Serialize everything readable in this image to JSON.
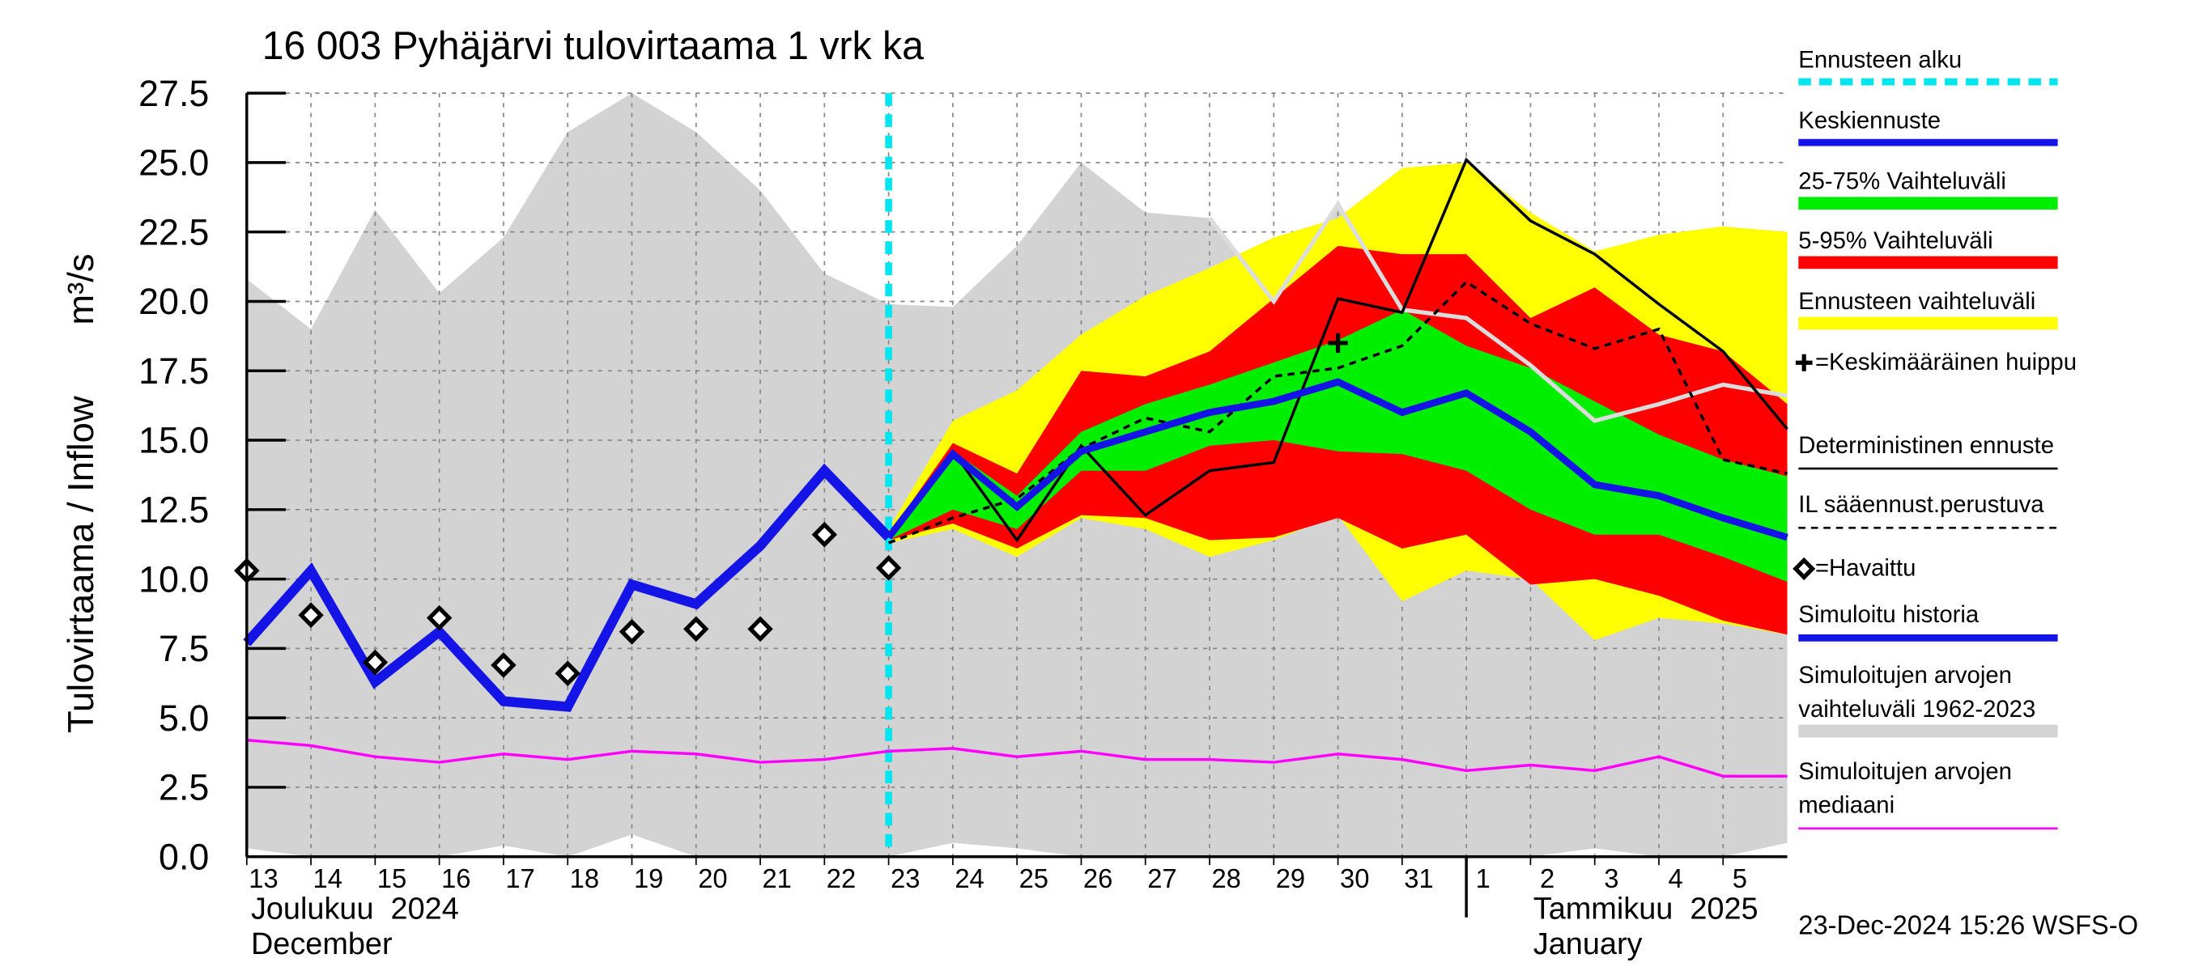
{
  "chart_data": {
    "type": "line",
    "title": "16 003 Pyhäjärvi tulovirtaama 1 vrk ka",
    "y_label": "Tulovirtaama / Inflow",
    "y_unit": "m³/s",
    "xlim": [
      "2024-12-13",
      "2025-01-06"
    ],
    "ylim": [
      0,
      27.5
    ],
    "yticks": [
      {
        "value": 0,
        "label": "0.0"
      },
      2.5,
      {
        "value": 5,
        "label": "5.0"
      },
      7.5,
      {
        "value": 10,
        "label": "10.0"
      },
      12.5,
      {
        "value": 15,
        "label": "15.0"
      },
      17.5,
      {
        "value": 20,
        "label": "20.0"
      },
      22.5,
      {
        "value": 25,
        "label": "25.0"
      },
      27.5
    ],
    "xticks": [
      {
        "value": "2024-12-13",
        "label": "13"
      },
      {
        "value": "2024-12-14",
        "label": "14"
      },
      {
        "value": "2024-12-15",
        "label": "15"
      },
      {
        "value": "2024-12-16",
        "label": "16"
      },
      {
        "value": "2024-12-17",
        "label": "17"
      },
      {
        "value": "2024-12-18",
        "label": "18"
      },
      {
        "value": "2024-12-19",
        "label": "19"
      },
      {
        "value": "2024-12-20",
        "label": "20"
      },
      {
        "value": "2024-12-21",
        "label": "21"
      },
      {
        "value": "2024-12-22",
        "label": "22"
      },
      {
        "value": "2024-12-23",
        "label": "23"
      },
      {
        "value": "2024-12-24",
        "label": "24"
      },
      {
        "value": "2024-12-25",
        "label": "25"
      },
      {
        "value": "2024-12-26",
        "label": "26"
      },
      {
        "value": "2024-12-27",
        "label": "27"
      },
      {
        "value": "2024-12-28",
        "label": "28"
      },
      {
        "value": "2024-12-29",
        "label": "29"
      },
      {
        "value": "2024-12-30",
        "label": "30"
      },
      {
        "value": "2024-12-31",
        "label": "31"
      },
      {
        "value": "2025-01-01",
        "label": "1"
      },
      {
        "value": "2025-01-02",
        "label": "2"
      },
      {
        "value": "2025-01-03",
        "label": "3"
      },
      {
        "value": "2025-01-04",
        "label": "4"
      },
      {
        "value": "2025-01-05",
        "label": "5"
      }
    ],
    "grid": true,
    "month_labels": [
      {
        "x": "2024-12-13",
        "lines": [
          "Joulukuu  2024",
          "December"
        ]
      },
      {
        "x": "2025-01-01",
        "lines": [
          "Tammikuu  2025",
          "January"
        ]
      }
    ],
    "timestamp": "23-Dec-2024 15:26 WSFS-O",
    "forecast_start": {
      "name": "Ennusteen alku",
      "x": "2024-12-23",
      "color": "#00e5ee"
    },
    "peak": {
      "name": "=Keskimääräinen huippu",
      "x": "2024-12-30",
      "y": 18.5,
      "color": "#000000"
    },
    "series": [
      {
        "name": "Keskiennuste",
        "kind": "line",
        "color": "#1414e6",
        "width": 5,
        "x": [
          "2024-12-23",
          "2024-12-24",
          "2024-12-25",
          "2024-12-26",
          "2024-12-27",
          "2024-12-28",
          "2024-12-29",
          "2024-12-30",
          "2024-12-31",
          "2025-01-01",
          "2025-01-02",
          "2025-01-03",
          "2025-01-04",
          "2025-01-05",
          "2025-01-06"
        ],
        "values": [
          11.5,
          14.5,
          12.6,
          14.6,
          15.3,
          16.0,
          16.4,
          17.1,
          16.0,
          16.7,
          15.3,
          13.4,
          13.0,
          12.2,
          11.5
        ]
      },
      {
        "name": "25-75% Vaihteluväli",
        "kind": "band",
        "color": "#00ee00",
        "x": [
          "2024-12-23",
          "2024-12-24",
          "2024-12-25",
          "2024-12-26",
          "2024-12-27",
          "2024-12-28",
          "2024-12-29",
          "2024-12-30",
          "2024-12-31",
          "2025-01-01",
          "2025-01-02",
          "2025-01-03",
          "2025-01-04",
          "2025-01-05",
          "2025-01-06"
        ],
        "lower": [
          11.4,
          12.5,
          11.8,
          13.9,
          13.9,
          14.8,
          15.0,
          14.6,
          14.5,
          13.9,
          12.5,
          11.6,
          11.6,
          10.8,
          9.9
        ],
        "upper": [
          11.5,
          14.6,
          13.0,
          15.3,
          16.3,
          17.0,
          17.8,
          18.6,
          19.7,
          18.4,
          17.6,
          16.4,
          15.2,
          14.3,
          13.7
        ]
      },
      {
        "name": "5-95% Vaihteluväli",
        "kind": "band",
        "color": "#ff0000",
        "x": [
          "2024-12-23",
          "2024-12-24",
          "2024-12-25",
          "2024-12-26",
          "2024-12-27",
          "2024-12-28",
          "2024-12-29",
          "2024-12-30",
          "2024-12-31",
          "2025-01-01",
          "2025-01-02",
          "2025-01-03",
          "2025-01-04",
          "2025-01-05",
          "2025-01-06"
        ],
        "lower": [
          11.4,
          12.0,
          11.1,
          12.3,
          12.2,
          11.4,
          11.5,
          12.2,
          11.1,
          11.6,
          9.8,
          10.0,
          9.4,
          8.5,
          8.0
        ],
        "upper": [
          11.6,
          14.9,
          13.8,
          17.5,
          17.3,
          18.2,
          20.1,
          22.0,
          21.7,
          21.7,
          19.4,
          20.5,
          18.8,
          18.2,
          16.3
        ]
      },
      {
        "name": "Ennusteen vaihteluväli",
        "kind": "band",
        "color": "#ffff00",
        "x": [
          "2024-12-23",
          "2024-12-24",
          "2024-12-25",
          "2024-12-26",
          "2024-12-27",
          "2024-12-28",
          "2024-12-29",
          "2024-12-30",
          "2024-12-31",
          "2025-01-01",
          "2025-01-02",
          "2025-01-03",
          "2025-01-04",
          "2025-01-05",
          "2025-01-06"
        ],
        "lower": [
          11.3,
          11.8,
          10.8,
          12.2,
          11.8,
          10.8,
          11.4,
          12.3,
          9.2,
          10.3,
          10.0,
          7.8,
          8.6,
          8.4,
          8.0
        ],
        "upper": [
          11.8,
          15.7,
          16.8,
          18.8,
          20.2,
          21.2,
          22.3,
          23.0,
          24.8,
          25.0,
          23.2,
          21.8,
          22.4,
          22.7,
          22.5
        ]
      },
      {
        "name": "Deterministinen ennuste",
        "kind": "line",
        "color": "#000000",
        "width": 2,
        "x": [
          "2024-12-23",
          "2024-12-24",
          "2024-12-25",
          "2024-12-26",
          "2024-12-27",
          "2024-12-28",
          "2024-12-29",
          "2024-12-30",
          "2024-12-31",
          "2025-01-01",
          "2025-01-02",
          "2025-01-03",
          "2025-01-04",
          "2025-01-05",
          "2025-01-06"
        ],
        "values": [
          11.5,
          14.6,
          11.4,
          14.8,
          12.3,
          13.9,
          14.2,
          20.1,
          19.6,
          25.1,
          22.9,
          21.7,
          19.9,
          18.2,
          15.4
        ]
      },
      {
        "name": "IL sääennust.perustuva",
        "kind": "line",
        "dashed": true,
        "color": "#000000",
        "width": 2,
        "x": [
          "2024-12-23",
          "2024-12-24",
          "2024-12-25",
          "2024-12-26",
          "2024-12-27",
          "2024-12-28",
          "2024-12-29",
          "2024-12-30",
          "2024-12-31",
          "2025-01-01",
          "2025-01-02",
          "2025-01-03",
          "2025-01-04",
          "2025-01-05",
          "2025-01-06"
        ],
        "values": [
          11.3,
          12.2,
          12.9,
          14.7,
          15.8,
          15.3,
          17.3,
          17.6,
          18.4,
          20.7,
          19.2,
          18.3,
          19.0,
          14.3,
          13.8
        ]
      },
      {
        "name": "=Havaittu",
        "kind": "points",
        "color": "#000000",
        "x": [
          "2024-12-13",
          "2024-12-14",
          "2024-12-15",
          "2024-12-16",
          "2024-12-17",
          "2024-12-18",
          "2024-12-19",
          "2024-12-20",
          "2024-12-21",
          "2024-12-22",
          "2024-12-23"
        ],
        "values": [
          10.3,
          8.7,
          7.0,
          8.6,
          6.9,
          6.6,
          8.1,
          8.2,
          8.2,
          11.6,
          10.4
        ]
      },
      {
        "name": "Simuloitu historia",
        "kind": "line",
        "color": "#1414e6",
        "width": 7,
        "x": [
          "2024-12-13",
          "2024-12-14",
          "2024-12-15",
          "2024-12-16",
          "2024-12-17",
          "2024-12-18",
          "2024-12-19",
          "2024-12-20",
          "2024-12-21",
          "2024-12-22",
          "2024-12-23"
        ],
        "values": [
          7.7,
          10.3,
          6.3,
          8.1,
          5.6,
          5.4,
          9.8,
          9.1,
          11.2,
          13.9,
          11.5
        ]
      },
      {
        "name": "Simuloitujen arvojen vaihteluväli 1962-2023",
        "kind": "band",
        "color": "#d3d3d3",
        "x": [
          "2024-12-13",
          "2024-12-14",
          "2024-12-15",
          "2024-12-16",
          "2024-12-17",
          "2024-12-18",
          "2024-12-19",
          "2024-12-20",
          "2024-12-21",
          "2024-12-22",
          "2024-12-23",
          "2024-12-24",
          "2024-12-25",
          "2024-12-26",
          "2024-12-27",
          "2024-12-28",
          "2024-12-29",
          "2024-12-30",
          "2024-12-31",
          "2025-01-01",
          "2025-01-02",
          "2025-01-03",
          "2025-01-04",
          "2025-01-05",
          "2025-01-06"
        ],
        "lower": [
          0.3,
          0,
          0,
          0,
          0.4,
          0,
          0.8,
          0,
          0,
          0,
          0,
          0.5,
          0.3,
          0,
          0,
          0,
          0,
          0,
          0,
          0,
          0,
          0.3,
          0,
          0,
          0.5
        ],
        "upper": [
          20.8,
          19.0,
          23.3,
          20.3,
          22.3,
          26.1,
          27.5,
          26.1,
          24.0,
          21.0,
          19.9,
          19.8,
          22.0,
          25.0,
          23.2,
          23.0,
          20.0,
          23.5,
          19.6,
          19.0,
          18.5,
          17.5,
          17.0,
          16.5,
          16.0
        ]
      },
      {
        "name": "Simuloitujen arvojen mediaani",
        "kind": "line",
        "color": "#ff00ff",
        "width": 2,
        "x": [
          "2024-12-13",
          "2024-12-14",
          "2024-12-15",
          "2024-12-16",
          "2024-12-17",
          "2024-12-18",
          "2024-12-19",
          "2024-12-20",
          "2024-12-21",
          "2024-12-22",
          "2024-12-23",
          "2024-12-24",
          "2024-12-25",
          "2024-12-26",
          "2024-12-27",
          "2024-12-28",
          "2024-12-29",
          "2024-12-30",
          "2024-12-31",
          "2025-01-01",
          "2025-01-02",
          "2025-01-03",
          "2025-01-04",
          "2025-01-05",
          "2025-01-06"
        ],
        "values": [
          4.2,
          4.0,
          3.6,
          3.4,
          3.7,
          3.5,
          3.8,
          3.7,
          3.4,
          3.5,
          3.8,
          3.9,
          3.6,
          3.8,
          3.5,
          3.5,
          3.4,
          3.7,
          3.5,
          3.1,
          3.3,
          3.1,
          3.6,
          2.9,
          2.9
        ]
      },
      {
        "kind": "line",
        "color": "#dcdcdc",
        "width": 3,
        "x": [
          "2024-12-28",
          "2024-12-29",
          "2024-12-30",
          "2024-12-31",
          "2025-01-01",
          "2025-01-02",
          "2025-01-03",
          "2025-01-04",
          "2025-01-05",
          "2025-01-06"
        ],
        "values": [
          23.0,
          20.0,
          23.5,
          19.7,
          19.4,
          17.7,
          15.7,
          16.3,
          17.0,
          16.6
        ]
      }
    ]
  }
}
